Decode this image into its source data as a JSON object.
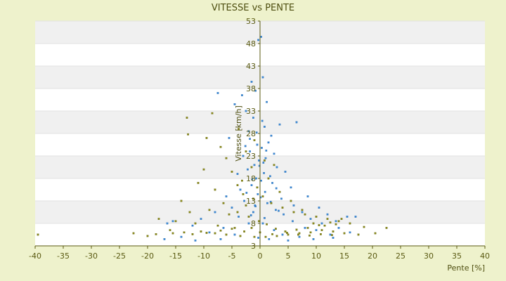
{
  "chart_data": {
    "type": "scatter",
    "title": "VITESSE vs PENTE",
    "xlabel": "Pente [%]",
    "ylabel": "Vitesse [km/h]",
    "xlim": [
      -40,
      40
    ],
    "ylim": [
      3,
      53
    ],
    "x_ticks": [
      -40,
      -35,
      -30,
      -25,
      -20,
      -15,
      -10,
      -5,
      0,
      5,
      10,
      15,
      20,
      25,
      30,
      35,
      40
    ],
    "x_tick_labels": [
      "-40",
      "-35",
      "-30",
      "-25",
      "-20",
      "-15",
      "-10",
      "-5",
      "0",
      "5",
      "10",
      "15",
      "20",
      "25",
      "30",
      "35",
      "40"
    ],
    "y_ticks": [
      3,
      8,
      13,
      18,
      23,
      28,
      33,
      38,
      43,
      48,
      53
    ],
    "y_tick_labels": [
      "3",
      "8",
      "13",
      "18",
      "23",
      "28",
      "33",
      "38",
      "43",
      "48",
      "53"
    ],
    "grid": "alternating horizontal bands",
    "legend": "none",
    "colors": {
      "background": "#eef2cc",
      "band_light": "#ffffff",
      "band_dark": "#f0f0f0",
      "series_blue": "#3a8ad6",
      "series_olive": "#8a8a16",
      "axis": "#5a5a12"
    },
    "series": [
      {
        "color": "#3a8ad6",
        "points": [
          [
            0.2,
            49.5
          ],
          [
            -0.3,
            48.8
          ],
          [
            0.5,
            40.5
          ],
          [
            -1.5,
            39.5
          ],
          [
            -0.8,
            37.5
          ],
          [
            -7.5,
            37.0
          ],
          [
            -3.2,
            36.5
          ],
          [
            1.2,
            35.0
          ],
          [
            -4.5,
            34.5
          ],
          [
            -2.5,
            33.0
          ],
          [
            6.5,
            30.5
          ],
          [
            3.5,
            30.0
          ],
          [
            -1.2,
            31.5
          ],
          [
            0.8,
            29.5
          ],
          [
            -2.0,
            28.5
          ],
          [
            2.0,
            27.5
          ],
          [
            -5.5,
            27.0
          ],
          [
            1.5,
            26.0
          ],
          [
            -0.5,
            25.5
          ],
          [
            0.3,
            24.8
          ],
          [
            -1.8,
            24.0
          ],
          [
            2.5,
            23.5
          ],
          [
            -3.0,
            23.0
          ],
          [
            1.0,
            22.5
          ],
          [
            -0.2,
            22.0
          ],
          [
            0.6,
            21.5
          ],
          [
            -1.0,
            21.0
          ],
          [
            3.0,
            20.5
          ],
          [
            -2.2,
            20.0
          ],
          [
            4.5,
            19.5
          ],
          [
            -4.0,
            19.0
          ],
          [
            1.8,
            18.5
          ],
          [
            -0.7,
            18.0
          ],
          [
            0.2,
            17.5
          ],
          [
            2.2,
            17.0
          ],
          [
            -1.5,
            16.5
          ],
          [
            5.5,
            16.0
          ],
          [
            -3.5,
            15.5
          ],
          [
            0.9,
            15.0
          ],
          [
            -0.4,
            14.5
          ],
          [
            8.5,
            14.0
          ],
          [
            -6.0,
            14.0
          ],
          [
            3.8,
            13.5
          ],
          [
            -2.8,
            13.0
          ],
          [
            1.3,
            12.5
          ],
          [
            -0.9,
            12.0
          ],
          [
            6.0,
            12.0
          ],
          [
            -5.0,
            11.5
          ],
          [
            10.5,
            11.5
          ],
          [
            2.8,
            11.0
          ],
          [
            -1.2,
            10.5
          ],
          [
            7.5,
            10.5
          ],
          [
            -8.0,
            10.5
          ],
          [
            12.0,
            10.0
          ],
          [
            4.2,
            10.0
          ],
          [
            -3.8,
            9.5
          ],
          [
            15.5,
            9.5
          ],
          [
            17.0,
            9.5
          ],
          [
            9.0,
            9.0
          ],
          [
            -10.5,
            9.0
          ],
          [
            13.5,
            8.5
          ],
          [
            5.8,
            8.5
          ],
          [
            -2.0,
            8.0
          ],
          [
            0.5,
            8.0
          ],
          [
            11.0,
            8.0
          ],
          [
            -15.5,
            8.5
          ],
          [
            -16.5,
            8.0
          ],
          [
            -12.0,
            7.5
          ],
          [
            8.0,
            7.0
          ],
          [
            14.0,
            7.0
          ],
          [
            -6.5,
            7.0
          ],
          [
            2.5,
            6.5
          ],
          [
            10.0,
            6.5
          ],
          [
            -9.0,
            6.0
          ],
          [
            16.0,
            6.0
          ],
          [
            4.0,
            5.5
          ],
          [
            -4.5,
            5.5
          ],
          [
            12.5,
            5.5
          ],
          [
            -14.0,
            5.0
          ],
          [
            7.0,
            5.0
          ],
          [
            -0.3,
            4.8
          ],
          [
            1.6,
            4.5
          ],
          [
            -7.0,
            4.5
          ],
          [
            9.5,
            4.5
          ],
          [
            -17.0,
            4.5
          ],
          [
            -11.5,
            4.2
          ],
          [
            5.0,
            4.2
          ],
          [
            13.0,
            4.8
          ],
          [
            -1.8,
            26.8
          ],
          [
            -0.6,
            28.2
          ],
          [
            0.4,
            30.8
          ],
          [
            -2.6,
            25.2
          ],
          [
            1.1,
            24.2
          ],
          [
            -0.1,
            20.8
          ],
          [
            0.7,
            19.2
          ],
          [
            -1.4,
            17.8
          ],
          [
            2.9,
            15.8
          ],
          [
            -2.4,
            14.8
          ],
          [
            0.1,
            13.8
          ],
          [
            1.9,
            12.8
          ],
          [
            -0.8,
            11.8
          ],
          [
            3.3,
            10.8
          ],
          [
            -1.6,
            9.8
          ],
          [
            0.8,
            9.2
          ]
        ]
      },
      {
        "color": "#8a8a16",
        "points": [
          [
            -39.5,
            5.5
          ],
          [
            -22.5,
            5.8
          ],
          [
            -20.0,
            5.2
          ],
          [
            -13.0,
            31.5
          ],
          [
            -8.5,
            32.5
          ],
          [
            -12.8,
            27.8
          ],
          [
            -9.5,
            27.0
          ],
          [
            -7.0,
            25.0
          ],
          [
            -6.0,
            22.5
          ],
          [
            -10.0,
            20.0
          ],
          [
            -5.0,
            19.5
          ],
          [
            -11.0,
            17.0
          ],
          [
            -4.0,
            16.5
          ],
          [
            -8.0,
            15.5
          ],
          [
            -3.0,
            14.5
          ],
          [
            -14.0,
            13.0
          ],
          [
            -6.5,
            12.5
          ],
          [
            -2.5,
            12.0
          ],
          [
            -12.5,
            10.5
          ],
          [
            -9.0,
            11.0
          ],
          [
            -5.5,
            10.0
          ],
          [
            -18.0,
            9.0
          ],
          [
            -15.0,
            8.5
          ],
          [
            -11.5,
            8.0
          ],
          [
            -7.5,
            7.5
          ],
          [
            -4.5,
            7.0
          ],
          [
            -1.5,
            7.0
          ],
          [
            -16.0,
            6.5
          ],
          [
            -13.5,
            6.0
          ],
          [
            -10.5,
            6.2
          ],
          [
            -8.0,
            5.8
          ],
          [
            -6.0,
            5.5
          ],
          [
            -3.5,
            5.2
          ],
          [
            -1.0,
            5.0
          ],
          [
            1.0,
            5.0
          ],
          [
            3.0,
            5.2
          ],
          [
            5.0,
            5.5
          ],
          [
            7.0,
            5.8
          ],
          [
            9.0,
            6.0
          ],
          [
            11.0,
            6.5
          ],
          [
            13.0,
            6.2
          ],
          [
            15.0,
            5.8
          ],
          [
            17.5,
            5.5
          ],
          [
            20.5,
            5.8
          ],
          [
            22.5,
            7.0
          ],
          [
            18.5,
            7.2
          ],
          [
            16.0,
            8.0
          ],
          [
            14.0,
            8.5
          ],
          [
            12.0,
            9.0
          ],
          [
            10.0,
            9.5
          ],
          [
            8.0,
            10.0
          ],
          [
            6.0,
            10.5
          ],
          [
            4.0,
            11.5
          ],
          [
            2.0,
            12.5
          ],
          [
            0.5,
            14.0
          ],
          [
            -0.5,
            16.0
          ],
          [
            1.5,
            18.0
          ],
          [
            -1.5,
            20.5
          ],
          [
            0.8,
            22.0
          ],
          [
            -2.5,
            24.0
          ],
          [
            2.5,
            21.0
          ],
          [
            -3.8,
            29.0
          ],
          [
            -1.0,
            26.5
          ],
          [
            3.5,
            15.0
          ],
          [
            5.5,
            13.0
          ],
          [
            7.5,
            11.0
          ],
          [
            9.5,
            8.0
          ],
          [
            11.5,
            7.5
          ],
          [
            13.5,
            7.8
          ],
          [
            -2.0,
            9.5
          ],
          [
            -4.0,
            10.5
          ],
          [
            -0.2,
            8.5
          ],
          [
            1.2,
            7.8
          ],
          [
            2.8,
            6.8
          ],
          [
            4.5,
            6.2
          ],
          [
            6.5,
            6.6
          ],
          [
            8.5,
            7.0
          ],
          [
            10.5,
            7.6
          ],
          [
            12.5,
            8.2
          ],
          [
            14.5,
            9.0
          ],
          [
            -18.5,
            5.6
          ],
          [
            -15.5,
            5.8
          ],
          [
            -12.0,
            5.6
          ],
          [
            -9.5,
            5.9
          ],
          [
            -7.0,
            6.4
          ],
          [
            -5.0,
            6.8
          ],
          [
            -2.8,
            6.2
          ],
          [
            0.0,
            6.0
          ],
          [
            2.2,
            5.6
          ],
          [
            4.8,
            5.9
          ],
          [
            6.8,
            5.5
          ],
          [
            8.8,
            5.3
          ],
          [
            10.8,
            5.6
          ],
          [
            12.8,
            5.4
          ],
          [
            -1.2,
            13.5
          ],
          [
            -3.2,
            17.5
          ]
        ]
      }
    ]
  }
}
